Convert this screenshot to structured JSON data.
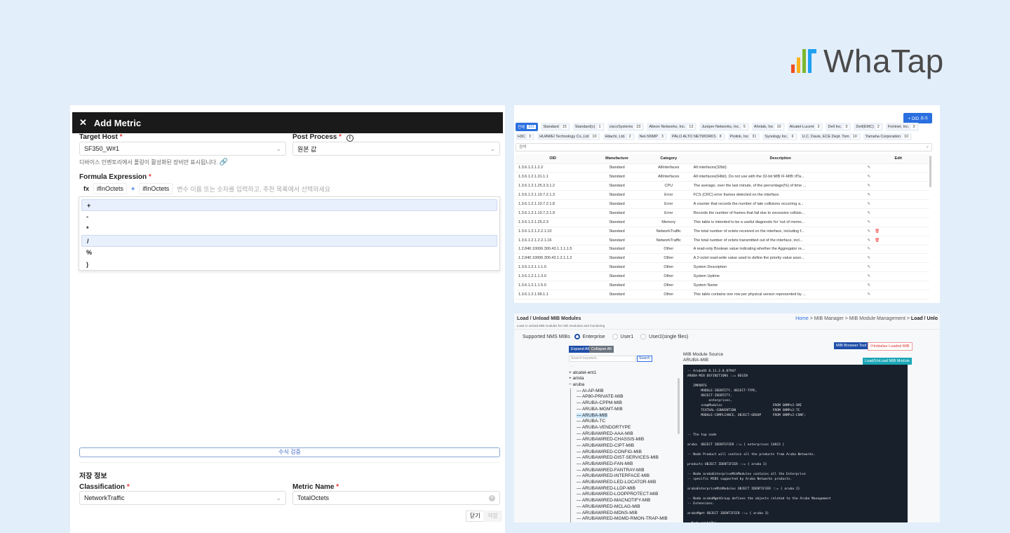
{
  "brand": {
    "name": "WhaTap",
    "colors": [
      "#f04e23",
      "#f8b21b",
      "#7cb82f",
      "#1ea1f1"
    ]
  },
  "add_metric": {
    "title": "Add Metric",
    "target_host": {
      "label": "Target Host",
      "value": "SF350_W#1"
    },
    "post_process": {
      "label": "Post Process",
      "value": "원본 값"
    },
    "hint": "디바이스 인벤토리에서 폴링이 활성화된 장비만 표시됩니다.",
    "formula": {
      "label": "Formula Expression",
      "fx": "fx",
      "tokens": [
        "ifInOctets",
        "+",
        "ifInOctets"
      ],
      "placeholder": "변수 이름 또는 숫자를 입력하고, 추천 목록에서 선택하세요"
    },
    "operators": [
      "+",
      "-",
      "*",
      "/",
      "%",
      ")"
    ],
    "verify_label": "수식 검증",
    "save_section": "저장 정보",
    "classification": {
      "label": "Classification",
      "value": "NetworkTraffic"
    },
    "metric_name": {
      "label": "Metric Name",
      "value": "TotalOctets"
    },
    "close_label": "닫기",
    "save_label": "저장"
  },
  "oid": {
    "add_label": "+ OID 추가",
    "tags": [
      [
        "전체",
        161
      ],
      [
        "Standard",
        15
      ],
      [
        "Standard(c)",
        1
      ],
      [
        "ciscoSystems",
        23
      ],
      [
        "Alteon Networks, Inc.",
        13
      ],
      [
        "Juniper Networks, Inc.",
        5
      ],
      [
        "Ahnlab, Inc",
        10
      ],
      [
        "Alcatel-Lucent",
        3
      ],
      [
        "Dell Inc.",
        3
      ],
      [
        "Dell(EMC)",
        2
      ],
      [
        "Fortinet, Inc.",
        3
      ],
      [
        "H3C",
        3
      ],
      [
        "HUAWEI Technology Co.,Ltd",
        10
      ],
      [
        "Hitachi, Ltd.",
        2
      ],
      [
        "Net-SNMP",
        3
      ],
      [
        "PALO ALTO NETWORKS",
        8
      ],
      [
        "Piolink, Inc",
        31
      ],
      [
        "Synology Inc.",
        6
      ],
      [
        "U.C. Davis, ECE Dept. Tom",
        10
      ],
      [
        "Yamaha Corporation",
        10
      ]
    ],
    "search_placeholder": "검색",
    "columns": [
      "OID",
      "Manufacture",
      "Category",
      "Description",
      "Edit"
    ],
    "rows": [
      [
        "1.3.6.1.2.1.2.2",
        "Standard",
        "AllInterfaces",
        "All interfaces(32bit)",
        false
      ],
      [
        "1.3.6.1.2.1.31.1.1",
        "Standard",
        "AllInterfaces",
        "All interfaces(64bit). Do not use with the 32-bit MIB IF-MIB::ifTa...",
        false
      ],
      [
        "1.3.6.1.2.1.25.3.3.1.2",
        "Standard",
        "CPU",
        "The average, over the last minute, of the percentage(%) of time ...",
        false
      ],
      [
        "1.3.6.1.2.1.10.7.2.1.3",
        "Standard",
        "Error",
        "FCS (CRC) error frames detected on the interface.",
        false
      ],
      [
        "1.3.6.1.2.1.10.7.2.1.8",
        "Standard",
        "Error",
        "A counter that records the number of late collisions occurring a...",
        false
      ],
      [
        "1.3.6.1.2.1.10.7.2.1.9",
        "Standard",
        "Error",
        "Records the number of frames that fail due to excessive collisio...",
        false
      ],
      [
        "1.3.6.1.2.1.25.2.3",
        "Standard",
        "Memory",
        "This table is intended to be a useful diagnostic for 'out of memo...",
        false
      ],
      [
        "1.3.6.1.2.1.2.2.1.10",
        "Standard",
        "NetworkTraffic",
        "The total number of octets received on the interface, including f...",
        true
      ],
      [
        "1.3.6.1.2.1.2.2.1.16",
        "Standard",
        "NetworkTraffic",
        "The total number of octets transmitted out of the interface, incl...",
        true
      ],
      [
        "1.2.840.10006.300.43.1.1.1.1.5",
        "Standard",
        "Other",
        "A read-only Boolean value indicating whether the Aggregator re...",
        false
      ],
      [
        "1.2.840.10006.300.43.1.2.1.1.2",
        "Standard",
        "Other",
        "A 2-octet read-write value used to define the priority value asso...",
        false
      ],
      [
        "1.3.6.1.2.1.1.1.0",
        "Standard",
        "Other",
        "System Description",
        false
      ],
      [
        "1.3.6.1.2.1.1.3.0",
        "Standard",
        "Other",
        "System Uptime",
        false
      ],
      [
        "1.3.6.1.2.1.1.5.0",
        "Standard",
        "Other",
        "System Name",
        false
      ],
      [
        "1.3.6.1.2.1.99.1.1",
        "Standard",
        "Other",
        "This table contains one row per physical sensor represented by ...",
        false
      ]
    ]
  },
  "mib": {
    "title": "Load / Unload MIB Modules",
    "subtitle": "Load or unload MIB modules for OID resolution and monitoring",
    "breadcrumb": [
      "Home",
      "MIB Manager",
      "MIB Module Management",
      "Load / Unlo"
    ],
    "supported_label": "Supported NMS MIBs",
    "radios": [
      "Enterprise",
      "User1",
      "User2(single files)"
    ],
    "selected_radio": "Enterprise",
    "expand_all": "Expand All",
    "collapse_all": "Collapse All",
    "search_placeholder": "Search keyword...",
    "search_btn": "Search",
    "browser_tool": "MIB Browser Tool",
    "init_loaded": "Initialize Loaded MIB",
    "source_label": "MIB Module Source",
    "source_name": "ARUBA-MIB",
    "load_btn": "Load/UnLoad MIB Module",
    "tree_parents": [
      "alcatel-ent1",
      "arista",
      "aruba"
    ],
    "tree_children": [
      "AI-AP-MIB",
      "AP80-PRIVATE-MIB",
      "ARUBA-CPPM-MIB",
      "ARUBA-MGMT-MIB",
      "ARUBA-MIB",
      "ARUBA-TC",
      "ARUBA-VENDORTYPE",
      "ARUBAWIRED-AAA-MIB",
      "ARUBAWIRED-CHASSIS-MIB",
      "ARUBAWIRED-CIPT-MIB",
      "ARUBAWIRED-CONFIG-MIB",
      "ARUBAWIRED-DIST-SERVICES-MIB",
      "ARUBAWIRED-FAN-MIB",
      "ARUBAWIRED-FANTRAY-MIB",
      "ARUBAWIRED-INTERFACE-MIB",
      "ARUBAWIRED-LED-LOCATOR-MIB",
      "ARUBAWIRED-LLDP-MIB",
      "ARUBAWIRED-LOOPPROTECT-MIB",
      "ARUBAWIRED-MACNOTIFY-MIB",
      "ARUBAWIRED-MCLAG-MIB",
      "ARUBAWIRED-MDNS-MIB",
      "ARUBAWIRED-MGMD-RMON-TRAP-MIB"
    ],
    "selected_child": "ARUBA-MIB",
    "code": "-- ArubaOS 8.11.2.0_87947\nARUBA-MIB DEFINITIONS ::= BEGIN\n\n   IMPORTS\n       MODULE-IDENTITY, OBJECT-TYPE,\n       OBJECT-IDENTITY,\n           enterprises,\n       snmpModules                          FROM SNMPv2-SMI\n       TEXTUAL-CONVENTION                   FROM SNMPv2-TC\n       MODULE-COMPLIANCE, OBJECT-GROUP      FROM SNMPv2-CONF;\n\n\n\n-- The top node\n\naruba  OBJECT IDENTIFIER ::= { enterprises 14823 }\n\n-- Node Product will contain all the products from Aruba Networks.\n\nproducts OBJECT IDENTIFIER ::= { aruba 1}\n\n-- Node arubaEnterpriseMibModules contains all the Enterprise\n-- specific MIBS supported by Aruba Networks products.\n\narubaEnterpriseMibModules OBJECT IDENTIFIER ::= { aruba 2}\n\n-- Node arubaMgmtGroup defines the objects related to the Aruba Management\n-- Extensions.\n\narubaMgmt OBJECT IDENTIFIER ::= { aruba 3}\n\n--Node arubaPki."
  }
}
